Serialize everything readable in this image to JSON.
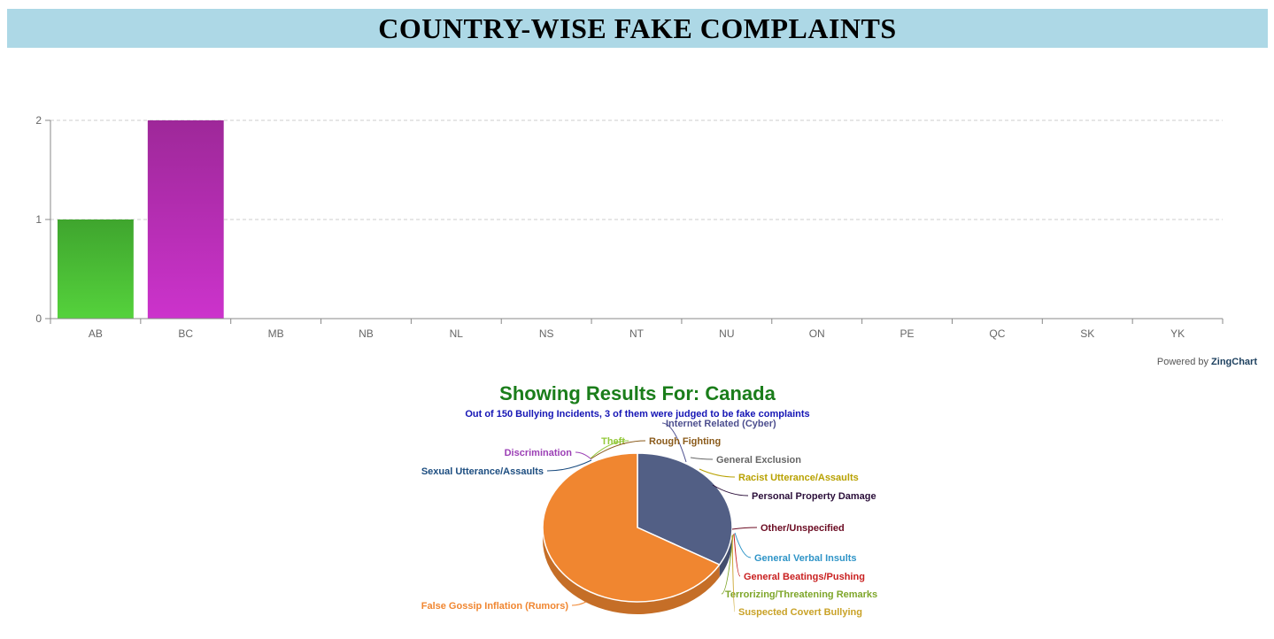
{
  "header": {
    "title": "COUNTRY-WISE FAKE COMPLAINTS"
  },
  "credit": {
    "prefix": "Powered by",
    "brand": "ZingChart"
  },
  "chart_data": [
    {
      "type": "bar",
      "title": "",
      "xlabel": "",
      "ylabel": "",
      "categories": [
        "AB",
        "BC",
        "MB",
        "NB",
        "NL",
        "NS",
        "NT",
        "NU",
        "ON",
        "PE",
        "QC",
        "SK",
        "YK"
      ],
      "values": [
        1,
        2,
        0,
        0,
        0,
        0,
        0,
        0,
        0,
        0,
        0,
        0,
        0
      ],
      "ylim": [
        0,
        2
      ],
      "yticks": [
        0,
        1,
        2
      ],
      "grid": "horizontal dashed",
      "colors": [
        [
          "#55d23c",
          "#3fa52e"
        ],
        [
          "#cc33cc",
          "#9e2899"
        ]
      ]
    },
    {
      "type": "pie",
      "title": "Showing Results For: Canada",
      "subtitle": "Out of 150 Bullying Incidents, 3 of them were judged to be fake complaints",
      "slices": [
        {
          "label": "Internet Related (Cyber)",
          "value": 0,
          "color": "#4d4f8f"
        },
        {
          "label": "General Exclusion",
          "value": 0,
          "color": "#666666"
        },
        {
          "label": "Racist Utterance/Assaults",
          "value": 0,
          "color": "#b8a100"
        },
        {
          "label": "Personal Property Damage",
          "value": 1,
          "color": "#2b0f3a"
        },
        {
          "label": "Other/Unspecified",
          "value": 0,
          "color": "#6b0b22"
        },
        {
          "label": "General Verbal Insults",
          "value": 0,
          "color": "#2e94c7"
        },
        {
          "label": "General Beatings/Pushing",
          "value": 0,
          "color": "#c92020"
        },
        {
          "label": "Terrorizing/Threatening Remarks",
          "value": 0,
          "color": "#7ea62a"
        },
        {
          "label": "Suspected Covert Bullying",
          "value": 0,
          "color": "#c9a227"
        },
        {
          "label": "False Gossip Inflation (Rumors)",
          "value": 2,
          "color": "#f08630"
        },
        {
          "label": "Sexual Utterance/Assaults",
          "value": 0,
          "color": "#1c4d80"
        },
        {
          "label": "Discrimination",
          "value": 0,
          "color": "#9b3fb5"
        },
        {
          "label": "Theft",
          "value": 0,
          "color": "#93c83a"
        },
        {
          "label": "Rough Fighting",
          "value": 0,
          "color": "#8a5a1a"
        }
      ],
      "slice_colors": {
        "Personal Property Damage": "#525f85"
      }
    }
  ]
}
